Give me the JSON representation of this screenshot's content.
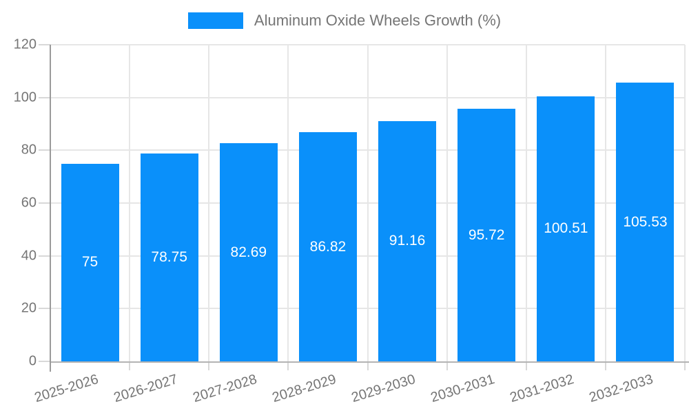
{
  "legend": {
    "items": [
      {
        "label": "Aluminum Oxide Wheels Growth (%)",
        "color": "#0a90fa"
      }
    ]
  },
  "chart_data": {
    "type": "bar",
    "title": "",
    "categories": [
      "2025-2026",
      "2026-2027",
      "2027-2028",
      "2028-2029",
      "2029-2030",
      "2030-2031",
      "2031-2032",
      "2032-2033"
    ],
    "series": [
      {
        "name": "Aluminum Oxide Wheels Growth (%)",
        "values": [
          75,
          78.75,
          82.69,
          86.82,
          91.16,
          95.72,
          100.51,
          105.53
        ],
        "value_labels": [
          "75",
          "78.75",
          "82.69",
          "86.82",
          "91.16",
          "95.72",
          "100.51",
          "105.53"
        ]
      }
    ],
    "xlabel": "",
    "ylabel": "",
    "ylim": [
      0,
      120
    ],
    "yticks": [
      0,
      20,
      40,
      60,
      80,
      100,
      120
    ],
    "grid": true,
    "legend_position": "top-center",
    "colors": {
      "bar": "#0a90fa",
      "bar_label": "#ffffff",
      "axis_text": "#757575",
      "grid_line": "#e6e6e6",
      "tick_line": "#d8d8d8",
      "x_axis_line": "#b3b3b3",
      "y_axis_line": "#9a9a9a",
      "background": "#ffffff"
    }
  }
}
